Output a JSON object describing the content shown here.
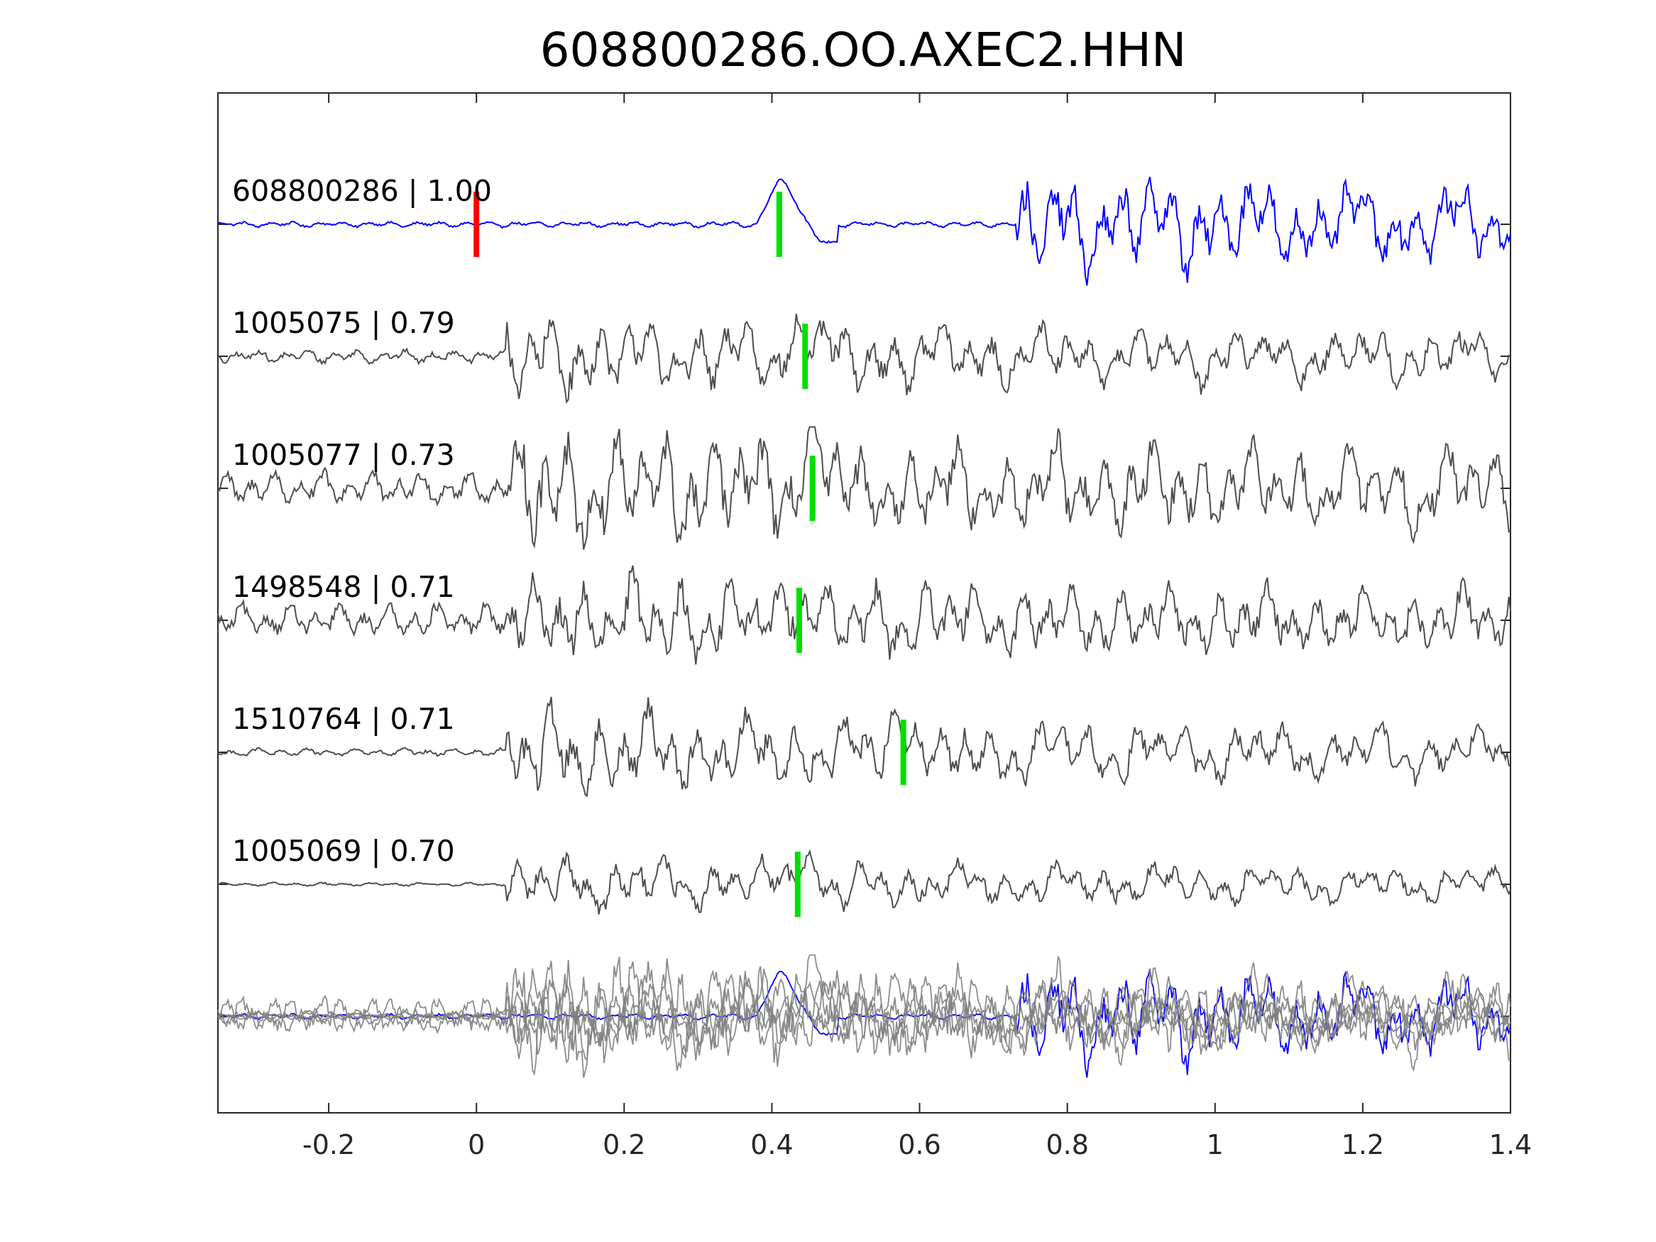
{
  "chart_data": {
    "type": "line",
    "title": "608800286.OO.AXEC2.HHN",
    "xlabel": "",
    "ylabel": "",
    "xlim": [
      -0.35,
      1.4
    ],
    "xticks": [
      -0.2,
      0,
      0.2,
      0.4,
      0.6,
      0.8,
      1,
      1.2,
      1.4
    ],
    "xtick_labels": [
      "-0.2",
      "0",
      "0.2",
      "0.4",
      "0.6",
      "0.8",
      "1",
      "1.2",
      "1.4"
    ],
    "grid": false,
    "legend": "none",
    "colors": {
      "template": "#0000ff",
      "neighbor": "#4d4d4d",
      "overlay": "#808080",
      "origin_pick": "#ff0000",
      "arrival_pick": "#00e000",
      "axes": "#262626"
    },
    "origin_pick_time": 0.0,
    "traces": [
      {
        "label": "608800286 | 1.00",
        "id": "608800286",
        "cc": 1.0,
        "pick_time": 0.41,
        "color": "template",
        "onset": 0.73,
        "noise_amp": 0.05,
        "signal_amp": 0.8
      },
      {
        "label": "1005075 | 0.79",
        "id": "1005075",
        "cc": 0.79,
        "pick_time": 0.445,
        "color": "neighbor",
        "onset": 0.04,
        "noise_amp": 0.12,
        "signal_amp": 0.55
      },
      {
        "label": "1005077 | 0.73",
        "id": "1005077",
        "cc": 0.73,
        "pick_time": 0.455,
        "color": "neighbor",
        "onset": 0.04,
        "noise_amp": 0.3,
        "signal_amp": 0.75
      },
      {
        "label": "1498548 | 0.71",
        "id": "1498548",
        "cc": 0.71,
        "pick_time": 0.437,
        "color": "neighbor",
        "onset": 0.04,
        "noise_amp": 0.28,
        "signal_amp": 0.5
      },
      {
        "label": "1510764 | 0.71",
        "id": "1510764",
        "cc": 0.71,
        "pick_time": 0.578,
        "color": "neighbor",
        "onset": 0.04,
        "noise_amp": 0.07,
        "signal_amp": 0.65
      },
      {
        "label": "1005069 | 0.70",
        "id": "1005069",
        "cc": 0.7,
        "pick_time": 0.435,
        "color": "neighbor",
        "onset": 0.04,
        "noise_amp": 0.03,
        "signal_amp": 0.45
      }
    ]
  }
}
